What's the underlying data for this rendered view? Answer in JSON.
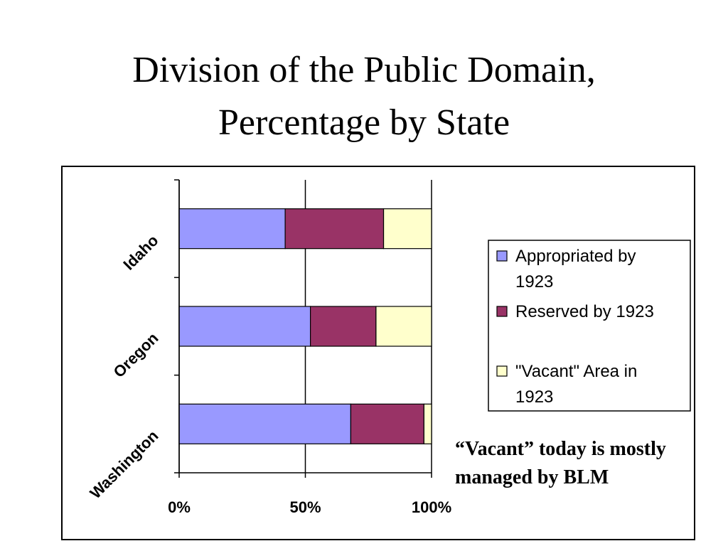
{
  "slide": {
    "title_line1": "Division of the Public Domain,",
    "title_line2": "Percentage by State",
    "note_line1": "“Vacant” today is mostly",
    "note_line2": "managed by BLM"
  },
  "chart_data": {
    "type": "bar",
    "orientation": "horizontal",
    "stacking": "percent",
    "categories": [
      "Idaho",
      "Oregon",
      "Washington"
    ],
    "series": [
      {
        "name": "Appropriated by 1923",
        "color": "#9999ff",
        "values": [
          42,
          52,
          68
        ]
      },
      {
        "name": "Reserved by 1923",
        "color": "#993366",
        "values": [
          39,
          26,
          29
        ]
      },
      {
        "name": "\"Vacant\" Area in 1923",
        "color": "#ffffcc",
        "values": [
          19,
          22,
          3
        ]
      }
    ],
    "x_ticks": [
      "0%",
      "50%",
      "100%"
    ],
    "xlim": [
      0,
      100
    ],
    "grid": "vertical major gridlines",
    "legend_position": "right"
  }
}
